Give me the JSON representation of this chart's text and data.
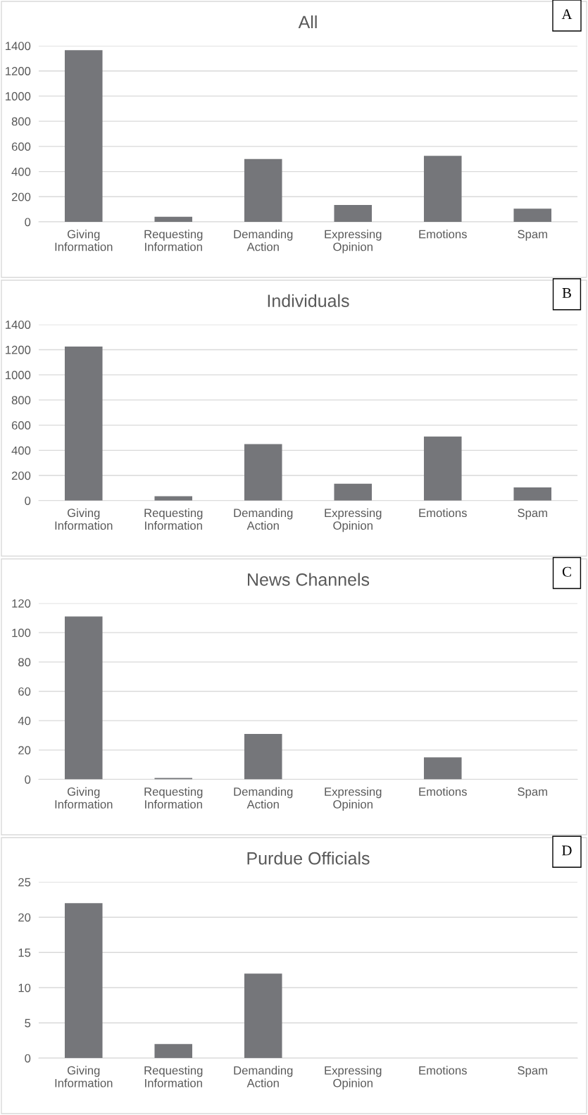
{
  "chart_data": [
    {
      "type": "bar",
      "title": "All",
      "annotations": [
        "A"
      ],
      "categories": [
        "Giving Information",
        "Requesting Information",
        "Demanding Action",
        "Expressing Opinion",
        "Emotions",
        "Spam"
      ],
      "color": "#75767a",
      "values": [
        1365,
        40,
        500,
        135,
        525,
        105
      ],
      "ylim": [
        0,
        1400
      ],
      "yticks": [
        0,
        200,
        400,
        600,
        800,
        1000,
        1200,
        1400
      ],
      "grid": "y"
    },
    {
      "type": "bar",
      "title": "Individuals",
      "annotations": [
        "B"
      ],
      "categories": [
        "Giving Information",
        "Requesting Information",
        "Demanding Action",
        "Expressing Opinion",
        "Emotions",
        "Spam"
      ],
      "color": "#75767a",
      "values": [
        1225,
        35,
        450,
        135,
        510,
        105
      ],
      "ylim": [
        0,
        1400
      ],
      "yticks": [
        0,
        200,
        400,
        600,
        800,
        1000,
        1200,
        1400
      ],
      "grid": "y"
    },
    {
      "type": "bar",
      "title": "News Channels",
      "annotations": [
        "C"
      ],
      "categories": [
        "Giving Information",
        "Requesting Information",
        "Demanding Action",
        "Expressing Opinion",
        "Emotions",
        "Spam"
      ],
      "color": "#75767a",
      "values": [
        111,
        1,
        31,
        0,
        15,
        0
      ],
      "ylim": [
        0,
        120
      ],
      "yticks": [
        0,
        20,
        40,
        60,
        80,
        100,
        120
      ],
      "grid": "y"
    },
    {
      "type": "bar",
      "title": "Purdue Officials",
      "annotations": [
        "D"
      ],
      "categories": [
        "Giving Information",
        "Requesting Information",
        "Demanding Action",
        "Expressing Opinion",
        "Emotions",
        "Spam"
      ],
      "color": "#75767a",
      "values": [
        22,
        2,
        12,
        0,
        0,
        0
      ],
      "ylim": [
        0,
        25
      ],
      "yticks": [
        0,
        5,
        10,
        15,
        20,
        25
      ],
      "grid": "y"
    }
  ]
}
